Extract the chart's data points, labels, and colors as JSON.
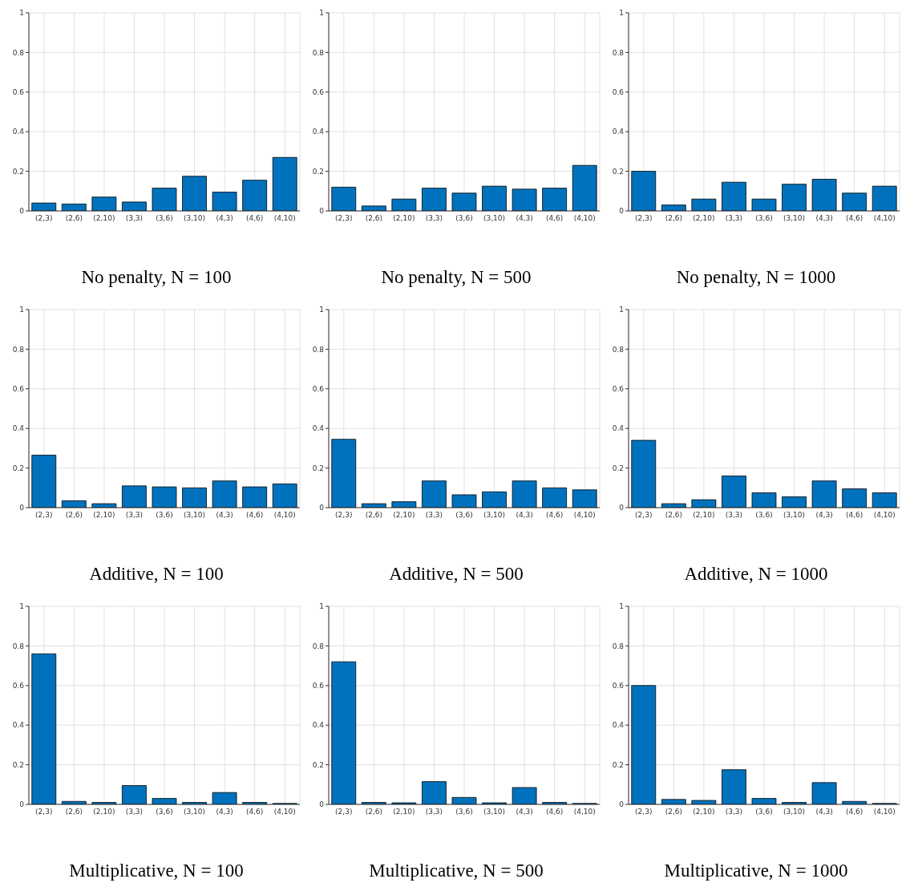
{
  "chart_data": [
    {
      "type": "bar",
      "title": "No penalty, N = 100",
      "categories": [
        "(2,3)",
        "(2,6)",
        "(2,10)",
        "(3,3)",
        "(3,6)",
        "(3,10)",
        "(4,3)",
        "(4,6)",
        "(4,10)"
      ],
      "values": [
        0.04,
        0.035,
        0.07,
        0.045,
        0.115,
        0.175,
        0.095,
        0.155,
        0.27
      ],
      "color": "#0072bd",
      "ylim": [
        0,
        1
      ],
      "yticks": [
        0,
        0.2,
        0.4,
        0.6,
        0.8,
        1
      ],
      "grid": true
    },
    {
      "type": "bar",
      "title": "No penalty, N = 500",
      "categories": [
        "(2,3)",
        "(2,6)",
        "(2,10)",
        "(3,3)",
        "(3,6)",
        "(3,10)",
        "(4,3)",
        "(4,6)",
        "(4,10)"
      ],
      "values": [
        0.12,
        0.025,
        0.06,
        0.115,
        0.09,
        0.125,
        0.11,
        0.115,
        0.23
      ],
      "color": "#0072bd",
      "ylim": [
        0,
        1
      ],
      "yticks": [
        0,
        0.2,
        0.4,
        0.6,
        0.8,
        1
      ],
      "grid": true
    },
    {
      "type": "bar",
      "title": "No penalty, N = 1000",
      "categories": [
        "(2,3)",
        "(2,6)",
        "(2,10)",
        "(3,3)",
        "(3,6)",
        "(3,10)",
        "(4,3)",
        "(4,6)",
        "(4,10)"
      ],
      "values": [
        0.2,
        0.03,
        0.06,
        0.145,
        0.06,
        0.135,
        0.16,
        0.09,
        0.125
      ],
      "color": "#0072bd",
      "ylim": [
        0,
        1
      ],
      "yticks": [
        0,
        0.2,
        0.4,
        0.6,
        0.8,
        1
      ],
      "grid": true
    },
    {
      "type": "bar",
      "title": "Additive, N = 100",
      "categories": [
        "(2,3)",
        "(2,6)",
        "(2,10)",
        "(3,3)",
        "(3,6)",
        "(3,10)",
        "(4,3)",
        "(4,6)",
        "(4,10)"
      ],
      "values": [
        0.265,
        0.035,
        0.02,
        0.11,
        0.105,
        0.1,
        0.135,
        0.105,
        0.12
      ],
      "color": "#0072bd",
      "ylim": [
        0,
        1
      ],
      "yticks": [
        0,
        0.2,
        0.4,
        0.6,
        0.8,
        1
      ],
      "grid": true
    },
    {
      "type": "bar",
      "title": "Additive, N = 500",
      "categories": [
        "(2,3)",
        "(2,6)",
        "(2,10)",
        "(3,3)",
        "(3,6)",
        "(3,10)",
        "(4,3)",
        "(4,6)",
        "(4,10)"
      ],
      "values": [
        0.345,
        0.02,
        0.03,
        0.135,
        0.065,
        0.08,
        0.135,
        0.1,
        0.09
      ],
      "color": "#0072bd",
      "ylim": [
        0,
        1
      ],
      "yticks": [
        0,
        0.2,
        0.4,
        0.6,
        0.8,
        1
      ],
      "grid": true
    },
    {
      "type": "bar",
      "title": "Additive, N = 1000",
      "categories": [
        "(2,3)",
        "(2,6)",
        "(2,10)",
        "(3,3)",
        "(3,6)",
        "(3,10)",
        "(4,3)",
        "(4,6)",
        "(4,10)"
      ],
      "values": [
        0.34,
        0.02,
        0.04,
        0.16,
        0.075,
        0.055,
        0.135,
        0.095,
        0.075
      ],
      "color": "#0072bd",
      "ylim": [
        0,
        1
      ],
      "yticks": [
        0,
        0.2,
        0.4,
        0.6,
        0.8,
        1
      ],
      "grid": true
    },
    {
      "type": "bar",
      "title": "Multiplicative, N = 100",
      "categories": [
        "(2,3)",
        "(2,6)",
        "(2,10)",
        "(3,3)",
        "(3,6)",
        "(3,10)",
        "(4,3)",
        "(4,6)",
        "(4,10)"
      ],
      "values": [
        0.76,
        0.015,
        0.01,
        0.095,
        0.03,
        0.01,
        0.06,
        0.01,
        0.005
      ],
      "color": "#0072bd",
      "ylim": [
        0,
        1
      ],
      "yticks": [
        0,
        0.2,
        0.4,
        0.6,
        0.8,
        1
      ],
      "grid": true
    },
    {
      "type": "bar",
      "title": "Multiplicative, N = 500",
      "categories": [
        "(2,3)",
        "(2,6)",
        "(2,10)",
        "(3,3)",
        "(3,6)",
        "(3,10)",
        "(4,3)",
        "(4,6)",
        "(4,10)"
      ],
      "values": [
        0.72,
        0.01,
        0.008,
        0.115,
        0.035,
        0.008,
        0.085,
        0.01,
        0.005
      ],
      "color": "#0072bd",
      "ylim": [
        0,
        1
      ],
      "yticks": [
        0,
        0.2,
        0.4,
        0.6,
        0.8,
        1
      ],
      "grid": true
    },
    {
      "type": "bar",
      "title": "Multiplicative, N = 1000",
      "categories": [
        "(2,3)",
        "(2,6)",
        "(2,10)",
        "(3,3)",
        "(3,6)",
        "(3,10)",
        "(4,3)",
        "(4,6)",
        "(4,10)"
      ],
      "values": [
        0.6,
        0.025,
        0.02,
        0.175,
        0.03,
        0.01,
        0.11,
        0.015,
        0.005
      ],
      "color": "#0072bd",
      "ylim": [
        0,
        1
      ],
      "yticks": [
        0,
        0.2,
        0.4,
        0.6,
        0.8,
        1
      ],
      "grid": true
    }
  ]
}
